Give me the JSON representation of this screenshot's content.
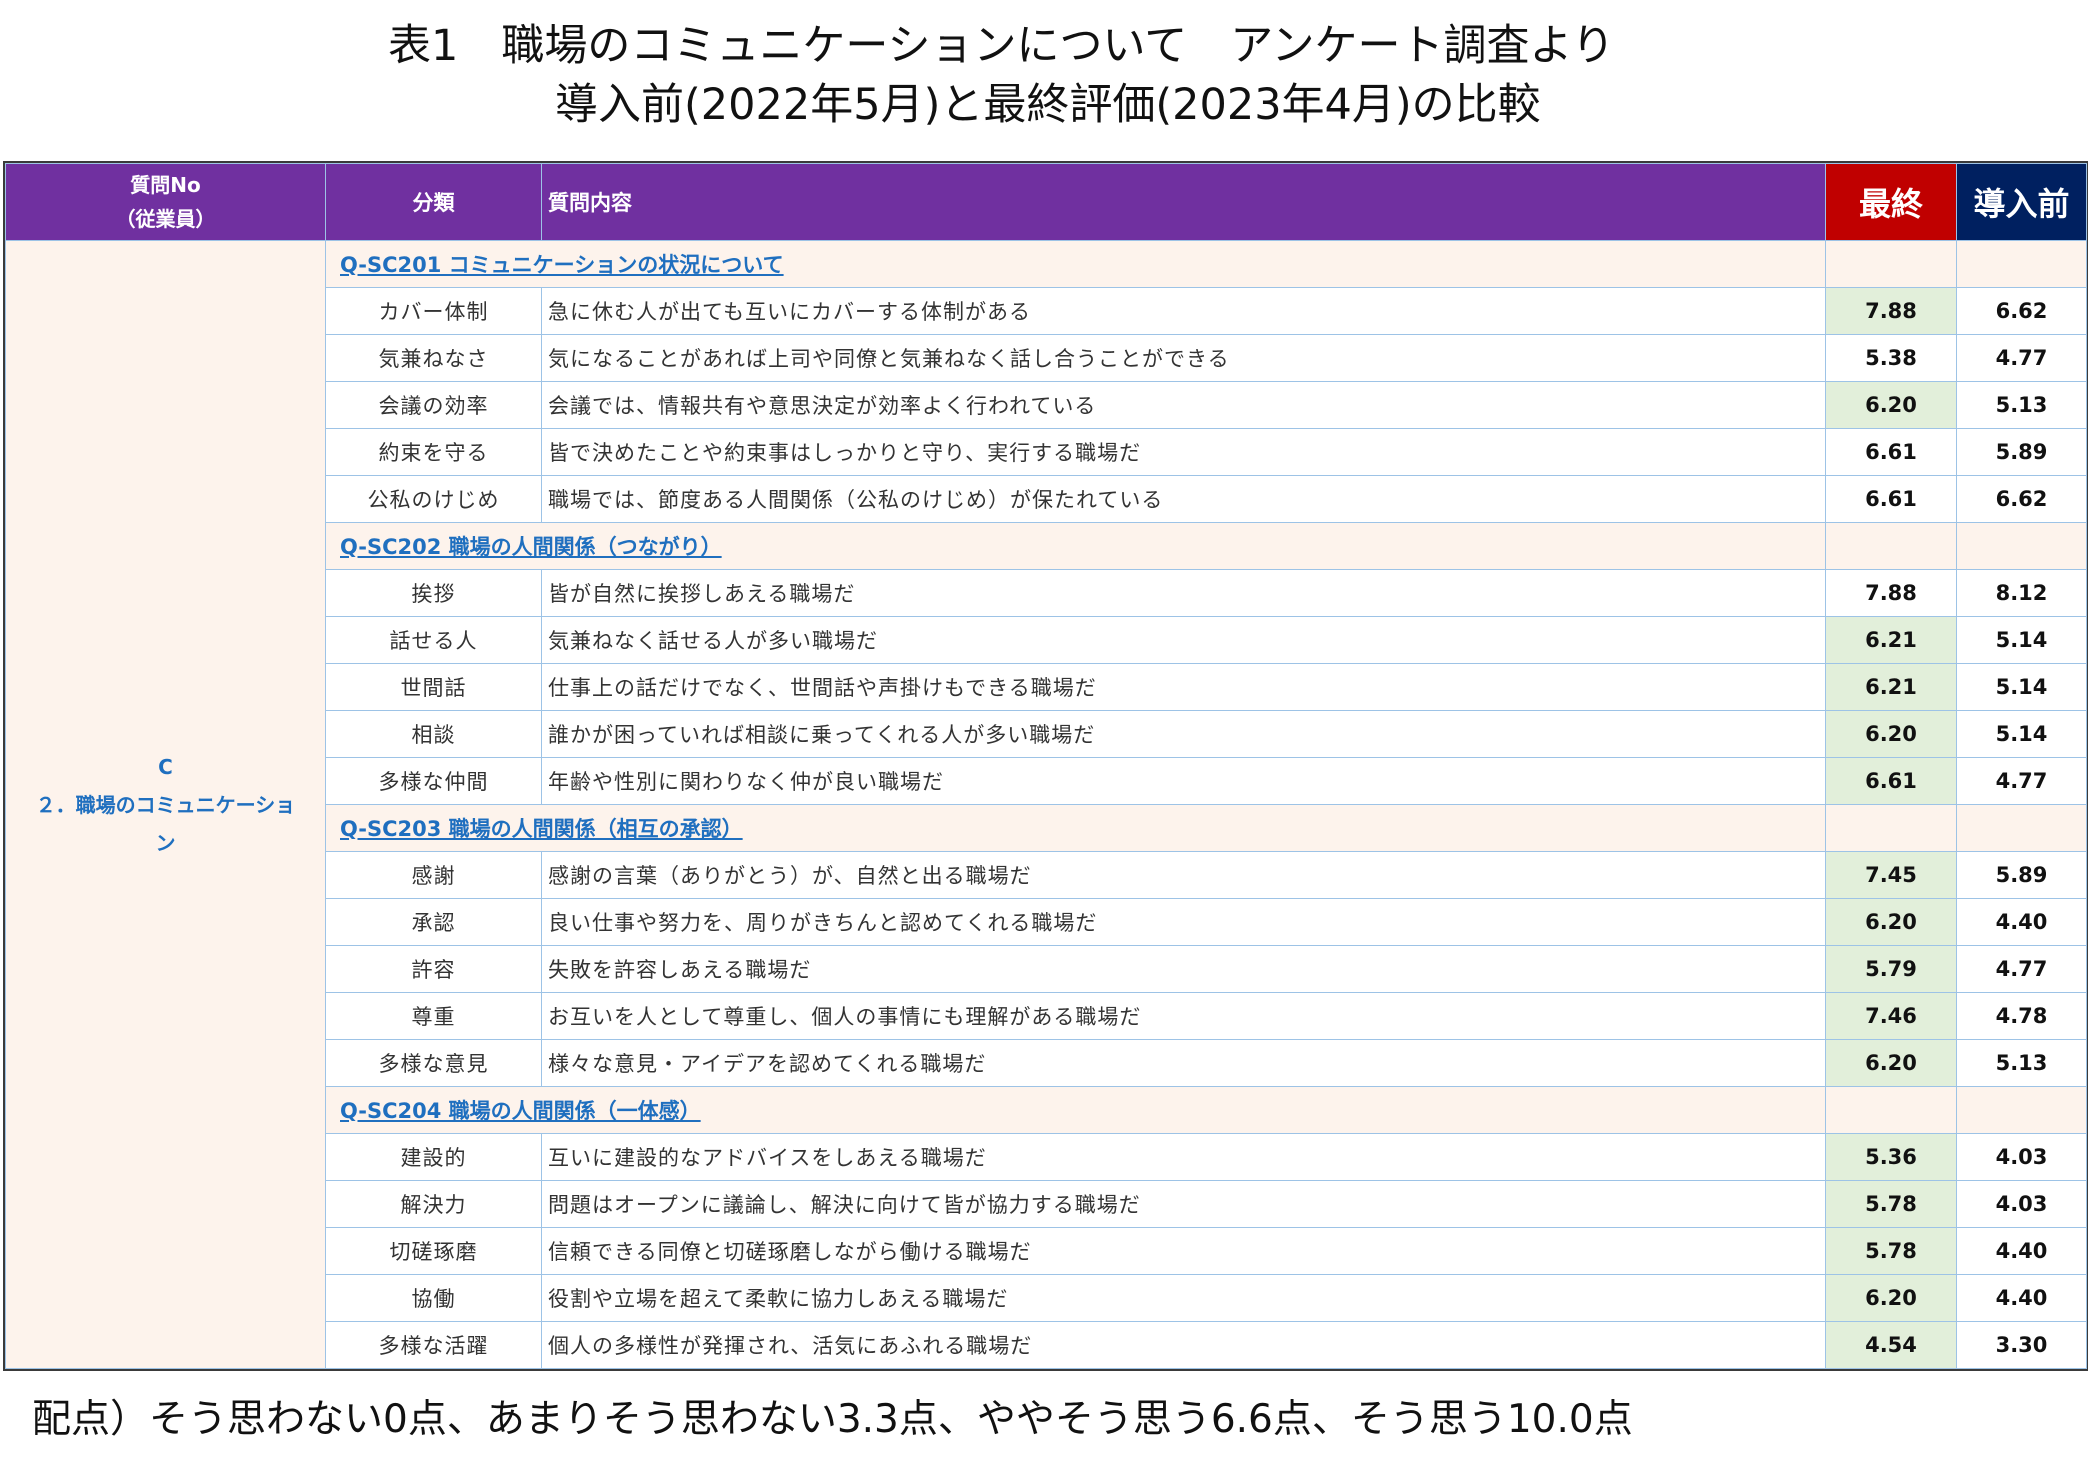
{
  "title": {
    "line1": "表1　職場のコミュニケーションについて　アンケート調査より",
    "line2": "導入前(2022年5月)と最終評価(2023年4月)の比較"
  },
  "table": {
    "headers": {
      "qno_line1": "質問No",
      "qno_line2": "（従業員）",
      "category": "分類",
      "content": "質問内容",
      "final": "最終",
      "before": "導入前"
    },
    "group_label_line1": "C",
    "group_label_line2": "２．職場のコミュニケーショ",
    "group_label_line3": "ン",
    "sections": [
      {
        "label": "Q-SC201 コミュニケーションの状況について",
        "rows": [
          {
            "category": "カバー体制",
            "content": "急に休む人が出ても互いにカバーする体制がある",
            "final": "7.88",
            "before": "6.62",
            "highlight": true
          },
          {
            "category": "気兼ねなさ",
            "content": "気になることがあれば上司や同僚と気兼ねなく話し合うことができる",
            "final": "5.38",
            "before": "4.77",
            "highlight": false
          },
          {
            "category": "会議の効率",
            "content": "会議では、情報共有や意思決定が効率よく行われている",
            "final": "6.20",
            "before": "5.13",
            "highlight": true
          },
          {
            "category": "約束を守る",
            "content": "皆で決めたことや約束事はしっかりと守り、実行する職場だ",
            "final": "6.61",
            "before": "5.89",
            "highlight": false
          },
          {
            "category": "公私のけじめ",
            "content": "職場では、節度ある人間関係（公私のけじめ）が保たれている",
            "final": "6.61",
            "before": "6.62",
            "highlight": false
          }
        ]
      },
      {
        "label": "Q-SC202 職場の人間関係（つながり）",
        "rows": [
          {
            "category": "挨拶",
            "content": "皆が自然に挨拶しあえる職場だ",
            "final": "7.88",
            "before": "8.12",
            "highlight": false
          },
          {
            "category": "話せる人",
            "content": "気兼ねなく話せる人が多い職場だ",
            "final": "6.21",
            "before": "5.14",
            "highlight": true
          },
          {
            "category": "世間話",
            "content": "仕事上の話だけでなく、世間話や声掛けもできる職場だ",
            "final": "6.21",
            "before": "5.14",
            "highlight": true
          },
          {
            "category": "相談",
            "content": "誰かが困っていれば相談に乗ってくれる人が多い職場だ",
            "final": "6.20",
            "before": "5.14",
            "highlight": true
          },
          {
            "category": "多様な仲間",
            "content": "年齢や性別に関わりなく仲が良い職場だ",
            "final": "6.61",
            "before": "4.77",
            "highlight": true
          }
        ]
      },
      {
        "label": "Q-SC203 職場の人間関係（相互の承認）",
        "rows": [
          {
            "category": "感謝",
            "content": "感謝の言葉（ありがとう）が、自然と出る職場だ",
            "final": "7.45",
            "before": "5.89",
            "highlight": true
          },
          {
            "category": "承認",
            "content": "良い仕事や努力を、周りがきちんと認めてくれる職場だ",
            "final": "6.20",
            "before": "4.40",
            "highlight": true
          },
          {
            "category": "許容",
            "content": "失敗を許容しあえる職場だ",
            "final": "5.79",
            "before": "4.77",
            "highlight": true
          },
          {
            "category": "尊重",
            "content": "お互いを人として尊重し、個人の事情にも理解がある職場だ",
            "final": "7.46",
            "before": "4.78",
            "highlight": true
          },
          {
            "category": "多様な意見",
            "content": "様々な意見・アイデアを認めてくれる職場だ",
            "final": "6.20",
            "before": "5.13",
            "highlight": true
          }
        ]
      },
      {
        "label": "Q-SC204 職場の人間関係（一体感）",
        "rows": [
          {
            "category": "建設的",
            "content": "互いに建設的なアドバイスをしあえる職場だ",
            "final": "5.36",
            "before": "4.03",
            "highlight": true
          },
          {
            "category": "解決力",
            "content": "問題はオープンに議論し、解決に向けて皆が協力する職場だ",
            "final": "5.78",
            "before": "4.03",
            "highlight": true
          },
          {
            "category": "切磋琢磨",
            "content": "信頼できる同僚と切磋琢磨しながら働ける職場だ",
            "final": "5.78",
            "before": "4.40",
            "highlight": true
          },
          {
            "category": "協働",
            "content": "役割や立場を超えて柔軟に協力しあえる職場だ",
            "final": "6.20",
            "before": "4.40",
            "highlight": true
          },
          {
            "category": "多様な活躍",
            "content": "個人の多様性が発揮され、活気にあふれる職場だ",
            "final": "4.54",
            "before": "3.30",
            "highlight": true
          }
        ]
      }
    ]
  },
  "footnote": "配点）そう思わない0点、あまりそう思わない3.3点、ややそう思う6.6点、そう思う10.0点",
  "colors": {
    "header_purple": "#7030a0",
    "final_red": "#c00000",
    "before_navy": "#002060",
    "highlight_green": "#e2efda",
    "section_blue": "#1f6fbf"
  }
}
